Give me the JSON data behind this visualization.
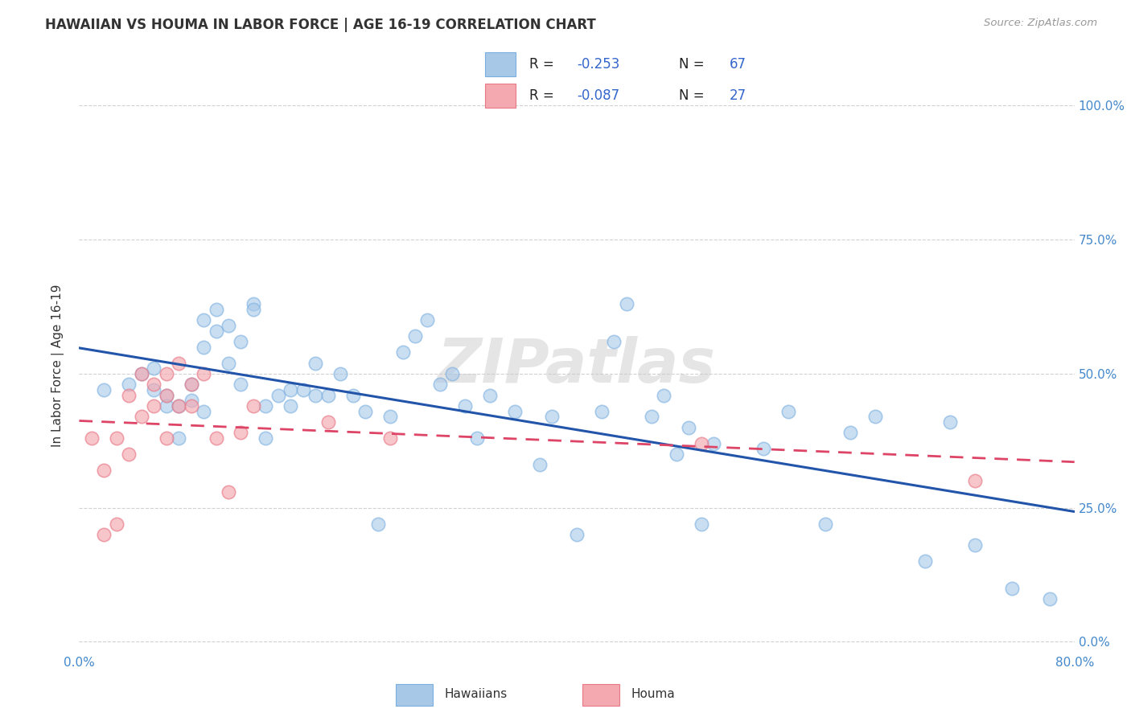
{
  "title": "HAWAIIAN VS HOUMA IN LABOR FORCE | AGE 16-19 CORRELATION CHART",
  "source": "Source: ZipAtlas.com",
  "ylabel": "In Labor Force | Age 16-19",
  "xlim": [
    0.0,
    0.8
  ],
  "ylim": [
    -0.02,
    1.05
  ],
  "yticks": [
    0.0,
    0.25,
    0.5,
    0.75,
    1.0
  ],
  "ytick_labels": [
    "0.0%",
    "25.0%",
    "50.0%",
    "75.0%",
    "100.0%"
  ],
  "xticks": [
    0.0,
    0.2,
    0.4,
    0.6,
    0.8
  ],
  "xtick_labels": [
    "0.0%",
    "",
    "",
    "",
    "80.0%"
  ],
  "watermark": "ZIPatlas",
  "hawaiians_color": "#a8c8e8",
  "hawaiians_edge_color": "#7aafe0",
  "houma_color": "#f4a8b0",
  "houma_edge_color": "#e87a88",
  "hawaiians_line_color": "#2255aa",
  "houma_line_color": "#dd4466",
  "legend_R_hawaiians": "-0.253",
  "legend_N_hawaiians": "67",
  "legend_R_houma": "-0.087",
  "legend_N_houma": "27",
  "hawaiians_x": [
    0.02,
    0.04,
    0.05,
    0.06,
    0.06,
    0.07,
    0.07,
    0.08,
    0.08,
    0.09,
    0.09,
    0.1,
    0.1,
    0.1,
    0.11,
    0.11,
    0.12,
    0.12,
    0.13,
    0.13,
    0.14,
    0.14,
    0.15,
    0.15,
    0.16,
    0.17,
    0.17,
    0.18,
    0.19,
    0.19,
    0.2,
    0.21,
    0.22,
    0.23,
    0.24,
    0.25,
    0.26,
    0.27,
    0.28,
    0.29,
    0.3,
    0.31,
    0.32,
    0.33,
    0.35,
    0.37,
    0.38,
    0.4,
    0.42,
    0.43,
    0.44,
    0.46,
    0.47,
    0.48,
    0.49,
    0.5,
    0.51,
    0.55,
    0.57,
    0.6,
    0.62,
    0.64,
    0.68,
    0.7,
    0.72,
    0.75,
    0.78
  ],
  "hawaiians_y": [
    0.47,
    0.48,
    0.5,
    0.51,
    0.47,
    0.46,
    0.44,
    0.38,
    0.44,
    0.48,
    0.45,
    0.43,
    0.55,
    0.6,
    0.62,
    0.58,
    0.59,
    0.52,
    0.56,
    0.48,
    0.63,
    0.62,
    0.44,
    0.38,
    0.46,
    0.47,
    0.44,
    0.47,
    0.46,
    0.52,
    0.46,
    0.5,
    0.46,
    0.43,
    0.22,
    0.42,
    0.54,
    0.57,
    0.6,
    0.48,
    0.5,
    0.44,
    0.38,
    0.46,
    0.43,
    0.33,
    0.42,
    0.2,
    0.43,
    0.56,
    0.63,
    0.42,
    0.46,
    0.35,
    0.4,
    0.22,
    0.37,
    0.36,
    0.43,
    0.22,
    0.39,
    0.42,
    0.15,
    0.41,
    0.18,
    0.1,
    0.08
  ],
  "houma_x": [
    0.01,
    0.02,
    0.02,
    0.03,
    0.03,
    0.04,
    0.04,
    0.05,
    0.05,
    0.06,
    0.06,
    0.07,
    0.07,
    0.07,
    0.08,
    0.08,
    0.09,
    0.09,
    0.1,
    0.11,
    0.12,
    0.13,
    0.14,
    0.2,
    0.25,
    0.5,
    0.72
  ],
  "houma_y": [
    0.38,
    0.32,
    0.2,
    0.22,
    0.38,
    0.35,
    0.46,
    0.5,
    0.42,
    0.48,
    0.44,
    0.38,
    0.46,
    0.5,
    0.44,
    0.52,
    0.48,
    0.44,
    0.5,
    0.38,
    0.28,
    0.39,
    0.44,
    0.41,
    0.38,
    0.37,
    0.3
  ],
  "background_color": "#ffffff",
  "grid_color": "#cccccc"
}
